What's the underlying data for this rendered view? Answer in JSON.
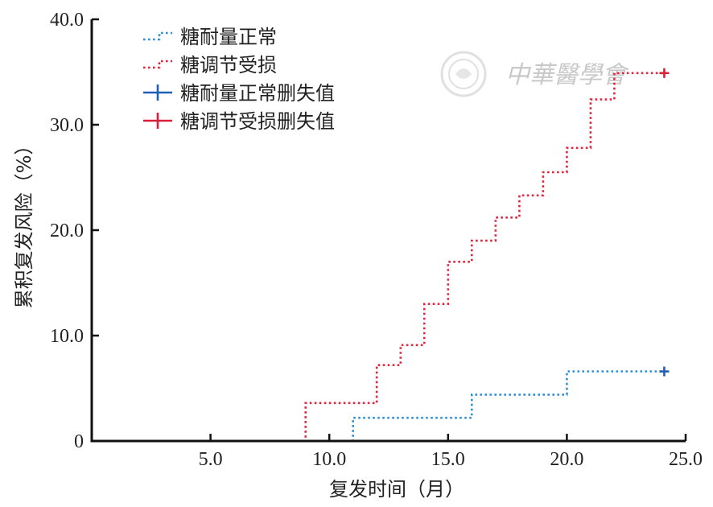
{
  "chart_data": {
    "type": "line",
    "step": true,
    "xlabel": "复发时间（月）",
    "ylabel": "累积复发风险（%）",
    "xlim": [
      0,
      25
    ],
    "ylim": [
      0,
      40
    ],
    "x_ticks": [
      "5.0",
      "10.0",
      "15.0",
      "20.0",
      "25.0"
    ],
    "x_tick_values": [
      5,
      10,
      15,
      20,
      25
    ],
    "y_ticks": [
      "0",
      "10.0",
      "20.0",
      "30.0",
      "40.0"
    ],
    "y_tick_values": [
      0,
      10,
      20,
      30,
      40
    ],
    "grid": false,
    "legend_position": "top-left",
    "series": [
      {
        "name": "糖耐量正常",
        "color": "#2f8fd6",
        "style": "dotted",
        "x": [
          0,
          11,
          16,
          20,
          24.1
        ],
        "y": [
          0,
          2.2,
          4.4,
          6.6,
          6.6
        ]
      },
      {
        "name": "糖调节受损",
        "color": "#e0253f",
        "style": "dotted",
        "x": [
          0,
          9,
          12,
          13,
          14,
          15,
          16,
          17,
          18,
          19,
          20,
          21,
          22,
          24.1
        ],
        "y": [
          0,
          3.6,
          7.2,
          9.1,
          13.0,
          17.0,
          19.0,
          21.2,
          23.3,
          25.5,
          27.8,
          32.4,
          34.9,
          34.9
        ]
      }
    ],
    "censor_marks": [
      {
        "name": "糖耐量正常删失值",
        "color": "#1f5fb4",
        "x": 24.1,
        "y": 6.6
      },
      {
        "name": "糖调节受损删失值",
        "color": "#d9203a",
        "x": 24.1,
        "y": 34.9
      }
    ]
  },
  "watermark": {
    "text": "中華醫學會"
  }
}
